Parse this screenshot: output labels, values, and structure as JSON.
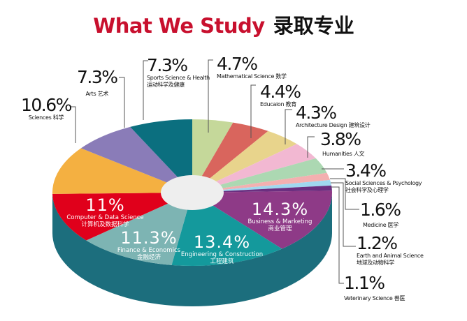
{
  "title": {
    "en": "What We Study",
    "zh": "录取专业"
  },
  "chart_data": {
    "type": "pie",
    "style": "3d-donut",
    "unit": "%",
    "side_color": "#1c6e7d",
    "hole_color": "#eeeeee",
    "slices": [
      {
        "pct": "4.7%",
        "value": 4.7,
        "en": "Mathematical Science",
        "zh": "数学",
        "color": "#c5d89a"
      },
      {
        "pct": "4.4%",
        "value": 4.4,
        "en": "Educaion",
        "zh": "教育",
        "color": "#d9655d"
      },
      {
        "pct": "4.3%",
        "value": 4.3,
        "en": "Architecture Design",
        "zh": "建筑设计",
        "color": "#e8d48c"
      },
      {
        "pct": "3.8%",
        "value": 3.8,
        "en": "Humanities",
        "zh": "人文",
        "color": "#f2b8d2"
      },
      {
        "pct": "3.4%",
        "value": 3.4,
        "en": "Social Sciences & Psychology",
        "zh": "社会科学及心理学",
        "color": "#acd8b2"
      },
      {
        "pct": "1.6%",
        "value": 1.6,
        "en": "Medicine",
        "zh": "医学",
        "color": "#f3b0b0"
      },
      {
        "pct": "1.2%",
        "value": 1.2,
        "en": "Earth and Animal Science",
        "zh": "地球及动物科学",
        "color": "#9fd8ef"
      },
      {
        "pct": "1.1%",
        "value": 1.1,
        "en": "Veterinary Science",
        "zh": "兽医",
        "color": "#6b2f80"
      },
      {
        "pct": "14.3%",
        "value": 14.3,
        "en": "Business & Marketing",
        "zh": "商业管理",
        "color": "#8e3a87"
      },
      {
        "pct": "13.4%",
        "value": 13.4,
        "en": "Engineering & Construction",
        "zh": "工程建筑",
        "color": "#14999c"
      },
      {
        "pct": "11.3%",
        "value": 11.3,
        "en": "Finance & Economics",
        "zh": "金融经济",
        "color": "#7db4b3"
      },
      {
        "pct": "11%",
        "value": 11,
        "en": "Computer & Data Science",
        "zh": "计算机及数据科学",
        "color": "#e0001b"
      },
      {
        "pct": "10.6%",
        "value": 10.6,
        "en": "Sciences",
        "zh": "科学",
        "color": "#f4b041"
      },
      {
        "pct": "7.3%",
        "value": 7.3,
        "en": "Arts",
        "zh": "艺术",
        "color": "#8a7cb8"
      },
      {
        "pct": "7.3%",
        "value": 7.3,
        "en": "Sports Science & Health",
        "zh": "运动科学及健康",
        "color": "#0b6f7f"
      }
    ]
  }
}
